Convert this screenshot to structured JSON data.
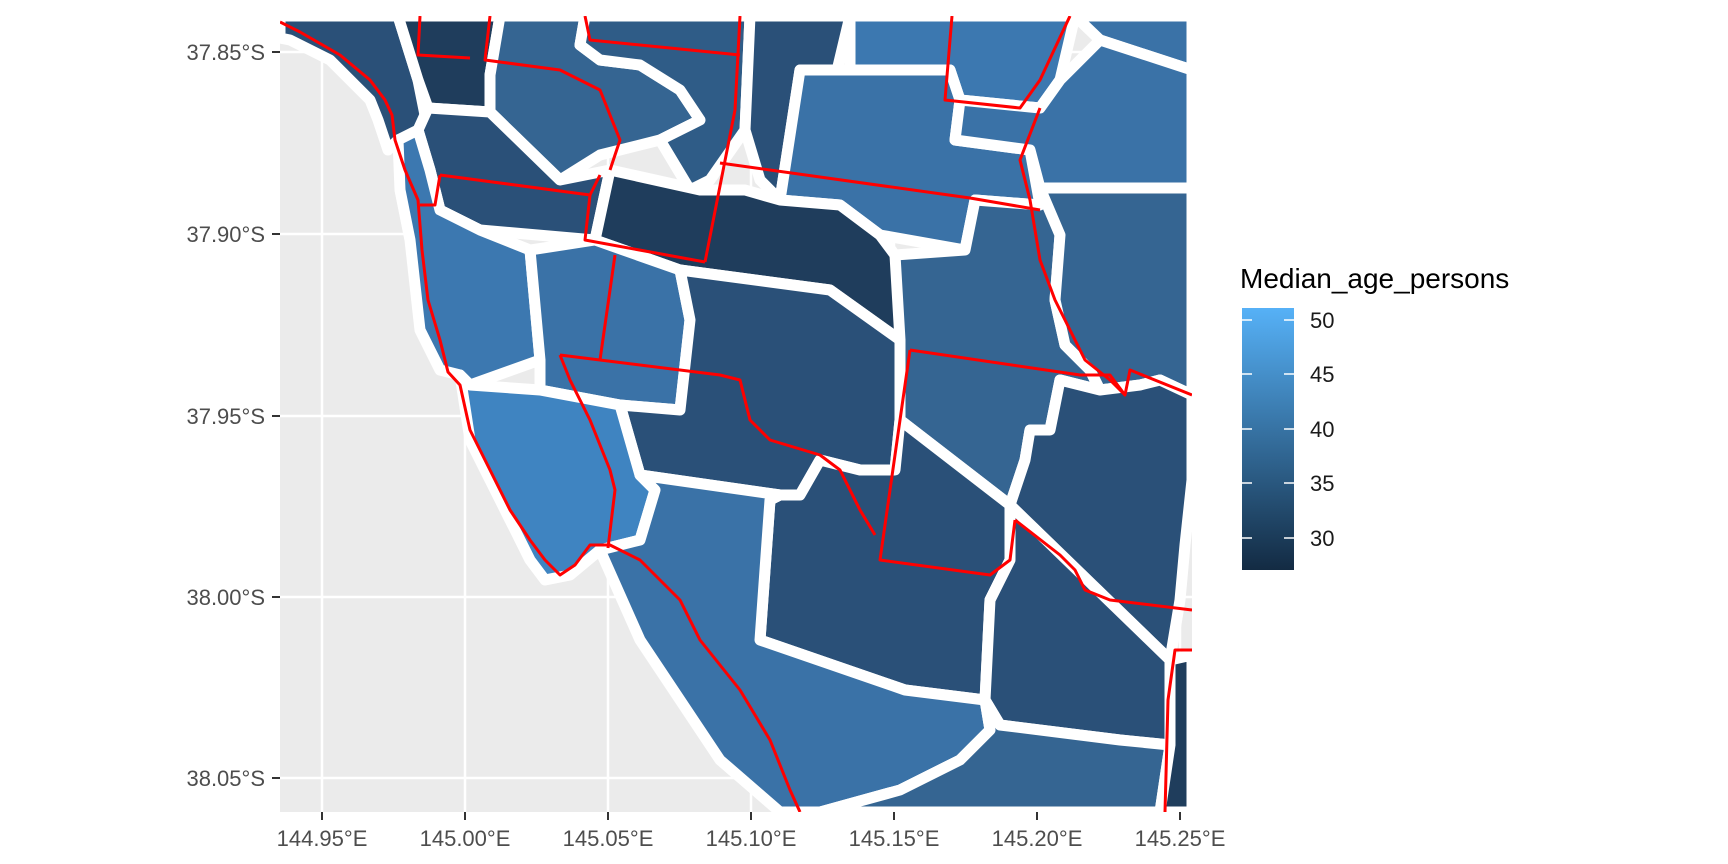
{
  "map": {
    "x_ticks": [
      "144.95°E",
      "145.00°E",
      "145.05°E",
      "145.10°E",
      "145.15°E",
      "145.20°E",
      "145.25°E"
    ],
    "y_ticks": [
      "37.85°S",
      "37.90°S",
      "37.95°S",
      "38.00°S",
      "38.05°S"
    ],
    "background_color": "#ebebeb",
    "grid_color": "#ffffff",
    "boundary_color": "#ff0000",
    "region_border_color": "#ffffff"
  },
  "legend": {
    "title": "Median_age_persons",
    "labels": [
      "50",
      "45",
      "40",
      "35",
      "30"
    ],
    "color_low": "#132b43",
    "color_high": "#56b1f7"
  }
}
